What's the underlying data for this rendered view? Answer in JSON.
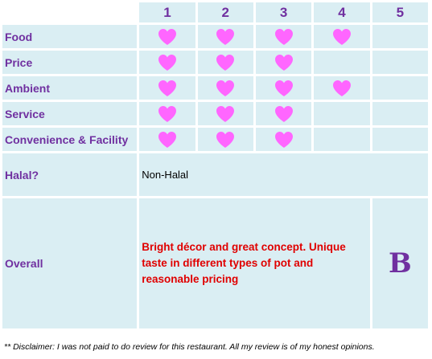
{
  "table": {
    "headers": [
      "1",
      "2",
      "3",
      "4",
      "5"
    ],
    "rows": [
      {
        "label": "Food",
        "hearts": 4
      },
      {
        "label": "Price",
        "hearts": 3
      },
      {
        "label": "Ambient",
        "hearts": 4
      },
      {
        "label": "Service",
        "hearts": 3
      },
      {
        "label": "Convenience & Facility",
        "hearts": 3
      }
    ],
    "max_hearts": 5,
    "heart_icon": "heart-icon",
    "heart_color": "#ff66ff"
  },
  "halal": {
    "label": "Halal?",
    "value": "Non-Halal"
  },
  "overall": {
    "label": "Overall",
    "text": "Bright décor and great concept. Unique taste in different types of pot and reasonable pricing",
    "grade": "B"
  },
  "disclaimer": "** Disclaimer: I was not paid to do review for this restaurant. All my review is of my honest opinions.",
  "colors": {
    "label_purple": "#7030a0",
    "cell_blue": "#daeef3",
    "comment_red": "#e00000"
  }
}
